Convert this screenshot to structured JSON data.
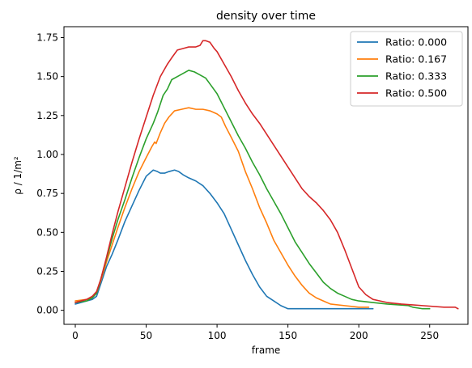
{
  "chart_data": {
    "type": "line",
    "title": "density over time",
    "xlabel": "frame",
    "ylabel": "ρ / 1/m²",
    "xlim": [
      -8,
      277
    ],
    "ylim": [
      -0.09,
      1.82
    ],
    "xticks": [
      0,
      50,
      100,
      150,
      200,
      250
    ],
    "yticks": [
      0.0,
      0.25,
      0.5,
      0.75,
      1.0,
      1.25,
      1.5,
      1.75
    ],
    "ytick_labels": [
      "0.00",
      "0.25",
      "0.50",
      "0.75",
      "1.00",
      "1.25",
      "1.50",
      "1.75"
    ],
    "grid": false,
    "legend_position": "top-right",
    "series": [
      {
        "name": "Ratio: 0.000",
        "color": "#1f77b4",
        "x": [
          0,
          8,
          12,
          15,
          18,
          22,
          26,
          30,
          35,
          40,
          45,
          50,
          55,
          58,
          60,
          63,
          66,
          70,
          73,
          76,
          80,
          85,
          90,
          95,
          100,
          105,
          110,
          115,
          120,
          125,
          130,
          135,
          140,
          145,
          150,
          160,
          180,
          200,
          210
        ],
        "y": [
          0.04,
          0.06,
          0.07,
          0.09,
          0.17,
          0.28,
          0.36,
          0.45,
          0.57,
          0.67,
          0.77,
          0.86,
          0.9,
          0.89,
          0.88,
          0.88,
          0.89,
          0.9,
          0.89,
          0.87,
          0.85,
          0.83,
          0.8,
          0.75,
          0.69,
          0.62,
          0.52,
          0.42,
          0.32,
          0.23,
          0.15,
          0.09,
          0.06,
          0.03,
          0.01,
          0.01,
          0.01,
          0.01,
          0.01
        ]
      },
      {
        "name": "Ratio: 0.167",
        "color": "#ff7f0e",
        "x": [
          0,
          8,
          12,
          15,
          18,
          22,
          26,
          30,
          35,
          40,
          45,
          50,
          54,
          56,
          57,
          60,
          63,
          66,
          70,
          75,
          80,
          85,
          90,
          95,
          100,
          103,
          106,
          110,
          115,
          120,
          125,
          130,
          135,
          140,
          145,
          150,
          155,
          160,
          165,
          170,
          175,
          180,
          190,
          200,
          207
        ],
        "y": [
          0.06,
          0.07,
          0.08,
          0.11,
          0.19,
          0.31,
          0.42,
          0.53,
          0.66,
          0.78,
          0.89,
          0.98,
          1.05,
          1.08,
          1.07,
          1.14,
          1.2,
          1.24,
          1.28,
          1.29,
          1.3,
          1.29,
          1.29,
          1.28,
          1.26,
          1.24,
          1.18,
          1.11,
          1.02,
          0.89,
          0.78,
          0.66,
          0.56,
          0.45,
          0.37,
          0.29,
          0.22,
          0.16,
          0.11,
          0.08,
          0.06,
          0.04,
          0.03,
          0.02,
          0.02
        ]
      },
      {
        "name": "Ratio: 0.333",
        "color": "#2ca02c",
        "x": [
          0,
          8,
          12,
          15,
          18,
          22,
          26,
          30,
          35,
          40,
          45,
          50,
          55,
          58,
          62,
          65,
          68,
          72,
          76,
          80,
          84,
          88,
          92,
          96,
          100,
          105,
          110,
          115,
          120,
          125,
          130,
          135,
          140,
          145,
          150,
          155,
          160,
          165,
          170,
          175,
          180,
          185,
          190,
          195,
          200,
          210,
          220,
          235,
          238,
          245,
          250
        ],
        "y": [
          0.05,
          0.06,
          0.08,
          0.11,
          0.2,
          0.33,
          0.46,
          0.58,
          0.71,
          0.85,
          0.98,
          1.1,
          1.2,
          1.27,
          1.38,
          1.42,
          1.48,
          1.5,
          1.52,
          1.54,
          1.53,
          1.51,
          1.49,
          1.44,
          1.39,
          1.3,
          1.21,
          1.12,
          1.04,
          0.95,
          0.87,
          0.78,
          0.7,
          0.62,
          0.53,
          0.44,
          0.37,
          0.3,
          0.24,
          0.18,
          0.14,
          0.11,
          0.09,
          0.07,
          0.06,
          0.05,
          0.04,
          0.03,
          0.02,
          0.01,
          0.01
        ]
      },
      {
        "name": "Ratio: 0.500",
        "color": "#d62728",
        "x": [
          0,
          8,
          12,
          15,
          18,
          22,
          26,
          30,
          35,
          40,
          45,
          50,
          55,
          60,
          65,
          68,
          72,
          76,
          80,
          85,
          88,
          90,
          92,
          95,
          98,
          100,
          105,
          110,
          115,
          120,
          125,
          130,
          135,
          140,
          145,
          150,
          155,
          160,
          165,
          170,
          175,
          180,
          185,
          190,
          195,
          200,
          205,
          210,
          215,
          220,
          230,
          245,
          260,
          268,
          270
        ],
        "y": [
          0.05,
          0.07,
          0.09,
          0.12,
          0.2,
          0.34,
          0.49,
          0.63,
          0.79,
          0.95,
          1.1,
          1.24,
          1.38,
          1.5,
          1.58,
          1.62,
          1.67,
          1.68,
          1.69,
          1.69,
          1.7,
          1.73,
          1.73,
          1.72,
          1.68,
          1.66,
          1.58,
          1.5,
          1.41,
          1.33,
          1.26,
          1.2,
          1.13,
          1.06,
          0.99,
          0.92,
          0.85,
          0.78,
          0.73,
          0.69,
          0.64,
          0.58,
          0.5,
          0.39,
          0.27,
          0.15,
          0.1,
          0.07,
          0.06,
          0.05,
          0.04,
          0.03,
          0.02,
          0.02,
          0.01
        ]
      }
    ]
  }
}
